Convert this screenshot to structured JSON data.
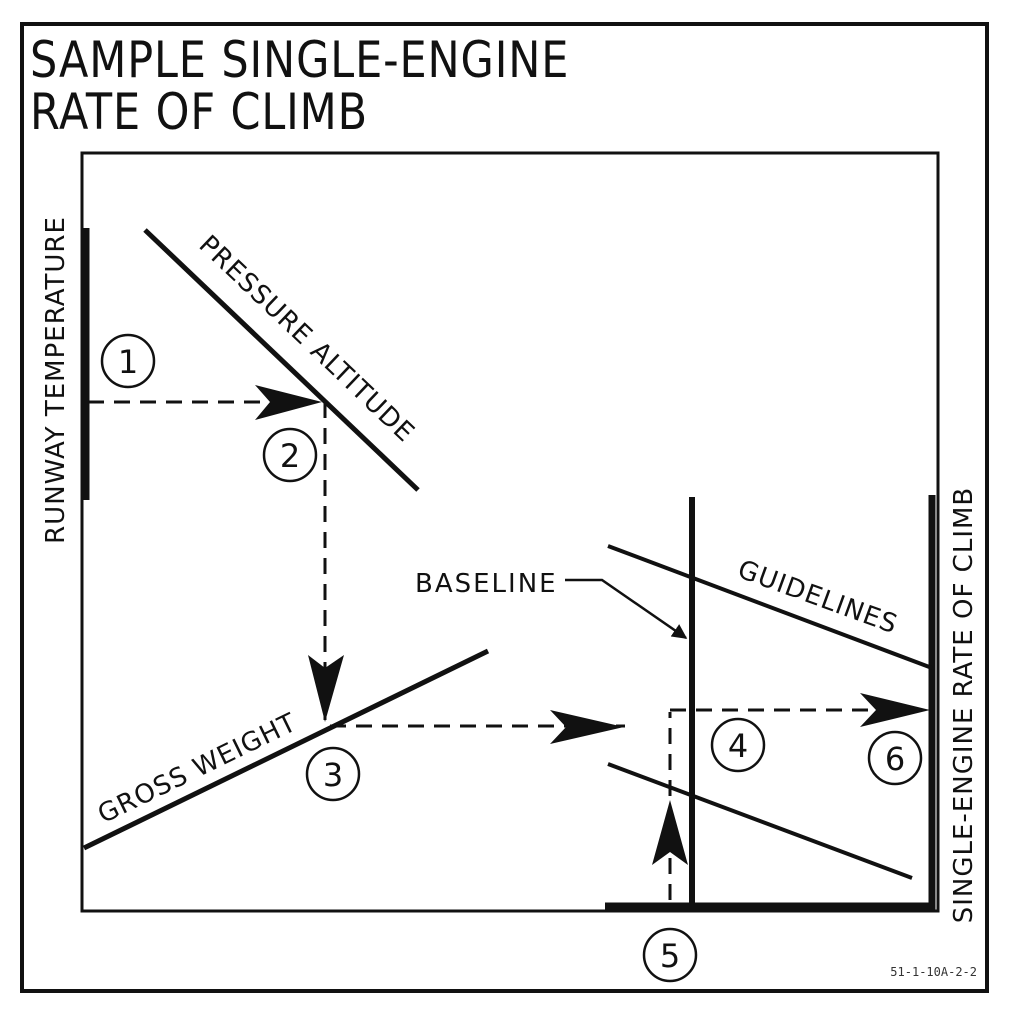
{
  "title": {
    "line1": "SAMPLE SINGLE-ENGINE",
    "line2": "RATE OF CLIMB"
  },
  "labels": {
    "runway_temperature": "RUNWAY TEMPERATURE",
    "pressure_altitude": "PRESSURE ALTITUDE",
    "gross_weight": "GROSS WEIGHT",
    "baseline": "BASELINE",
    "guidelines": "GUIDELINES",
    "rate_of_climb": "SINGLE-ENGINE RATE OF CLIMB"
  },
  "steps": [
    "1",
    "2",
    "3",
    "4",
    "5",
    "6"
  ],
  "figure_code": "51-1-10A-2-2"
}
